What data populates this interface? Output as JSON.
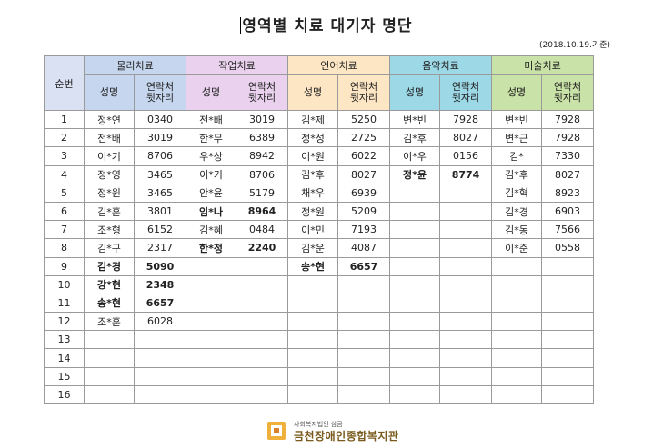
{
  "title": "영역별 치료 대기자 명단",
  "date_note": "(2018.10.19.기준)",
  "header": {
    "sunbeon": "순번",
    "name_label": "성명",
    "contact_label_1": "연락처",
    "contact_label_2": "뒷자리",
    "groups": [
      "물리치료",
      "작업치료",
      "언어치료",
      "음악치료",
      "미술치료"
    ]
  },
  "colors": {
    "physical": "#c5d6ee",
    "occupational": "#ead1ee",
    "speech": "#fde6c3",
    "music": "#9cd8e6",
    "art": "#c9e2a7"
  },
  "rows": [
    {
      "no": "1",
      "c": [
        [
          "정*연",
          "0340"
        ],
        [
          "전*배",
          "3019"
        ],
        [
          "김*제",
          "5250"
        ],
        [
          "변*빈",
          "7928"
        ],
        [
          "변*빈",
          "7928"
        ]
      ]
    },
    {
      "no": "2",
      "c": [
        [
          "전*배",
          "3019"
        ],
        [
          "한*무",
          "6389"
        ],
        [
          "정*성",
          "2725"
        ],
        [
          "김*후",
          "8027"
        ],
        [
          "변*근",
          "7928"
        ]
      ]
    },
    {
      "no": "3",
      "c": [
        [
          "이*기",
          "8706"
        ],
        [
          "우*상",
          "8942"
        ],
        [
          "이*원",
          "6022"
        ],
        [
          "이*우",
          "0156"
        ],
        [
          "김*",
          "7330"
        ]
      ]
    },
    {
      "no": "4",
      "c": [
        [
          "정*영",
          "3465"
        ],
        [
          "이*기",
          "8706"
        ],
        [
          "김*후",
          "8027"
        ],
        [
          "정*윤",
          "8774"
        ],
        [
          "김*후",
          "8027"
        ]
      ]
    },
    {
      "no": "5",
      "c": [
        [
          "정*원",
          "3465"
        ],
        [
          "안*윤",
          "5179"
        ],
        [
          "채*우",
          "6939"
        ],
        [
          "",
          ""
        ],
        [
          "김*혁",
          "8923"
        ]
      ]
    },
    {
      "no": "6",
      "c": [
        [
          "김*훈",
          "3801"
        ],
        [
          "임*나",
          "8964"
        ],
        [
          "정*원",
          "5209"
        ],
        [
          "",
          ""
        ],
        [
          "김*경",
          "6903"
        ]
      ]
    },
    {
      "no": "7",
      "c": [
        [
          "조*형",
          "6152"
        ],
        [
          "김*혜",
          "0484"
        ],
        [
          "이*민",
          "7193"
        ],
        [
          "",
          ""
        ],
        [
          "김*동",
          "7566"
        ]
      ]
    },
    {
      "no": "8",
      "c": [
        [
          "김*구",
          "2317"
        ],
        [
          "한*정",
          "2240"
        ],
        [
          "김*운",
          "4087"
        ],
        [
          "",
          ""
        ],
        [
          "이*준",
          "0558"
        ]
      ]
    },
    {
      "no": "9",
      "c": [
        [
          "김*경",
          "5090"
        ],
        [
          "",
          ""
        ],
        [
          "송*현",
          "6657"
        ],
        [
          "",
          ""
        ],
        [
          "",
          ""
        ]
      ]
    },
    {
      "no": "10",
      "c": [
        [
          "강*현",
          "2348"
        ],
        [
          "",
          ""
        ],
        [
          "",
          ""
        ],
        [
          "",
          ""
        ],
        [
          "",
          ""
        ]
      ]
    },
    {
      "no": "11",
      "c": [
        [
          "송*현",
          "6657"
        ],
        [
          "",
          ""
        ],
        [
          "",
          ""
        ],
        [
          "",
          ""
        ],
        [
          "",
          ""
        ]
      ]
    },
    {
      "no": "12",
      "c": [
        [
          "조*훈",
          "6028"
        ],
        [
          "",
          ""
        ],
        [
          "",
          ""
        ],
        [
          "",
          ""
        ],
        [
          "",
          ""
        ]
      ]
    },
    {
      "no": "13",
      "c": [
        [
          "",
          ""
        ],
        [
          "",
          ""
        ],
        [
          "",
          ""
        ],
        [
          "",
          ""
        ],
        [
          "",
          ""
        ]
      ]
    },
    {
      "no": "14",
      "c": [
        [
          "",
          ""
        ],
        [
          "",
          ""
        ],
        [
          "",
          ""
        ],
        [
          "",
          ""
        ],
        [
          "",
          ""
        ]
      ]
    },
    {
      "no": "15",
      "c": [
        [
          "",
          ""
        ],
        [
          "",
          ""
        ],
        [
          "",
          ""
        ],
        [
          "",
          ""
        ],
        [
          "",
          ""
        ]
      ]
    },
    {
      "no": "16",
      "c": [
        [
          "",
          ""
        ],
        [
          "",
          ""
        ],
        [
          "",
          ""
        ],
        [
          "",
          ""
        ],
        [
          "",
          ""
        ]
      ]
    }
  ],
  "footer": {
    "org_small": "사회복지법인 삼금",
    "org_name": "금천장애인종합복지관",
    "logo_icon": "org-logo-icon"
  }
}
